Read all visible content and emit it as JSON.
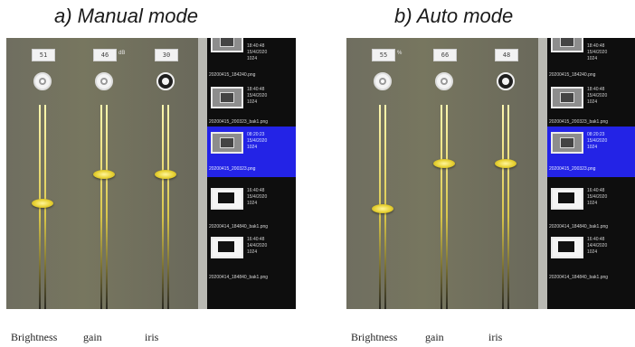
{
  "captions": {
    "manual": "a) Manual mode",
    "auto": "b) Auto mode"
  },
  "labels": [
    "Brightness",
    "gain",
    "iris"
  ],
  "panels": [
    {
      "id": "manual",
      "sliders": [
        {
          "value": "51",
          "unit": "",
          "icon": "brightness-icon",
          "level": 0.36
        },
        {
          "value": "46",
          "unit": "dB",
          "icon": "gain-icon",
          "level": 0.48
        },
        {
          "value": "30",
          "unit": "",
          "icon": "iris-icon",
          "level": 0.48
        }
      ]
    },
    {
      "id": "auto",
      "sliders": [
        {
          "value": "55",
          "unit": "%",
          "icon": "brightness-icon",
          "level": 0.34
        },
        {
          "value": "66",
          "unit": "",
          "icon": "gain-icon",
          "level": 0.53
        },
        {
          "value": "48",
          "unit": "",
          "icon": "iris-icon",
          "level": 0.53
        }
      ]
    }
  ],
  "filelist": [
    {
      "file": "20200415_184240.png",
      "time": "18:40:48",
      "date": "15/4/2020",
      "size": "1024",
      "thumb": "dark"
    },
    {
      "file": "20200415_200323_bak1.png",
      "time": "08:20:23",
      "date": "15/4/2020",
      "size": "1024",
      "thumb": "gray",
      "selected": true
    },
    {
      "file": "20200415_200323.png",
      "time": "16:40:48",
      "date": "15/4/2020",
      "size": "1024",
      "thumb": "white"
    },
    {
      "file": "20200414_184840_bak1.png",
      "time": "16:40:48",
      "date": "14/4/2020",
      "size": "1024",
      "thumb": "white"
    }
  ],
  "colors": {
    "panel": "#6b6a5c",
    "selected": "#2323e6",
    "thumb": "#e8d233"
  }
}
